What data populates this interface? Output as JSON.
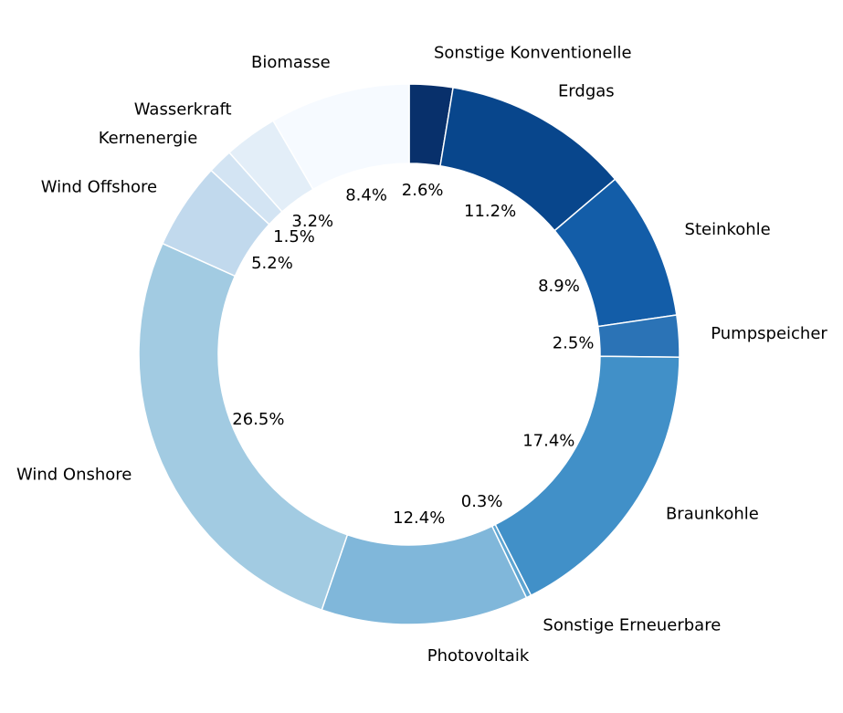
{
  "chart_data": {
    "type": "pie",
    "donut": true,
    "title": "",
    "legend": "none",
    "start_angle": "top, clockwise",
    "slices": [
      {
        "label": "Sonstige Konventionelle",
        "value": 2.6,
        "display": "2.6%",
        "color": "#08306b"
      },
      {
        "label": "Erdgas",
        "value": 11.2,
        "display": "11.2%",
        "color": "#08468c"
      },
      {
        "label": "Steinkohle",
        "value": 8.9,
        "display": "8.9%",
        "color": "#135da8"
      },
      {
        "label": "Pumpspeicher",
        "value": 2.5,
        "display": "2.5%",
        "color": "#2b73b6"
      },
      {
        "label": "Braunkohle",
        "value": 17.4,
        "display": "17.4%",
        "color": "#4190c8"
      },
      {
        "label": "Sonstige Erneuerbare",
        "value": 0.3,
        "display": "0.3%",
        "color": "#5ea5d2"
      },
      {
        "label": "Photovoltaik",
        "value": 12.4,
        "display": "12.4%",
        "color": "#80b7da"
      },
      {
        "label": "Wind Onshore",
        "value": 26.5,
        "display": "26.5%",
        "color": "#a2cbe2"
      },
      {
        "label": "Wind Offshore",
        "value": 5.2,
        "display": "5.2%",
        "color": "#c1d9ed"
      },
      {
        "label": "Kernenergie",
        "value": 1.5,
        "display": "1.5%",
        "color": "#d3e4f3"
      },
      {
        "label": "Wasserkraft",
        "value": 3.2,
        "display": "3.2%",
        "color": "#e3eef8"
      },
      {
        "label": "Biomasse",
        "value": 8.4,
        "display": "8.4%",
        "color": "#f6faff"
      }
    ]
  }
}
